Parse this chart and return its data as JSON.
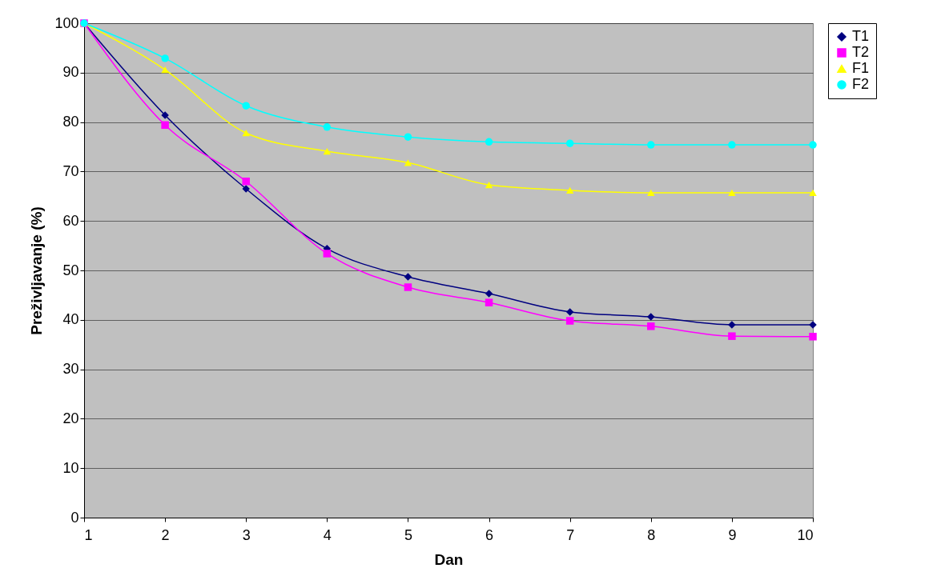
{
  "chart_data": {
    "type": "line",
    "xlabel": "Dan",
    "ylabel": "Preživljavanje (%)",
    "x": [
      1,
      2,
      3,
      4,
      5,
      6,
      7,
      8,
      9,
      10
    ],
    "xlim": [
      1,
      10
    ],
    "xticks": [
      1,
      2,
      3,
      4,
      5,
      6,
      7,
      8,
      9,
      10
    ],
    "ylim": [
      0,
      100
    ],
    "yticks": [
      0,
      10,
      20,
      30,
      40,
      50,
      60,
      70,
      80,
      90,
      100
    ],
    "grid": "y",
    "legend": "right",
    "line_style": "solid",
    "series": [
      {
        "name": "T1",
        "color": "#000080",
        "marker": "diamond",
        "values": [
          100,
          81.4,
          66.5,
          54.4,
          48.7,
          45.3,
          41.6,
          40.6,
          39.0,
          39.0
        ]
      },
      {
        "name": "T2",
        "color": "#ff00ff",
        "marker": "square",
        "values": [
          100,
          79.4,
          68.0,
          53.4,
          46.6,
          43.5,
          39.8,
          38.7,
          36.7,
          36.6
        ]
      },
      {
        "name": "F1",
        "color": "#ffff00",
        "marker": "triangle",
        "values": [
          100,
          90.6,
          77.8,
          74.1,
          71.8,
          67.3,
          66.2,
          65.7,
          65.7,
          65.7
        ]
      },
      {
        "name": "F2",
        "color": "#00ffff",
        "marker": "circle",
        "values": [
          100,
          92.9,
          83.3,
          79.0,
          77.0,
          76.0,
          75.7,
          75.4,
          75.4,
          75.4
        ]
      }
    ]
  }
}
